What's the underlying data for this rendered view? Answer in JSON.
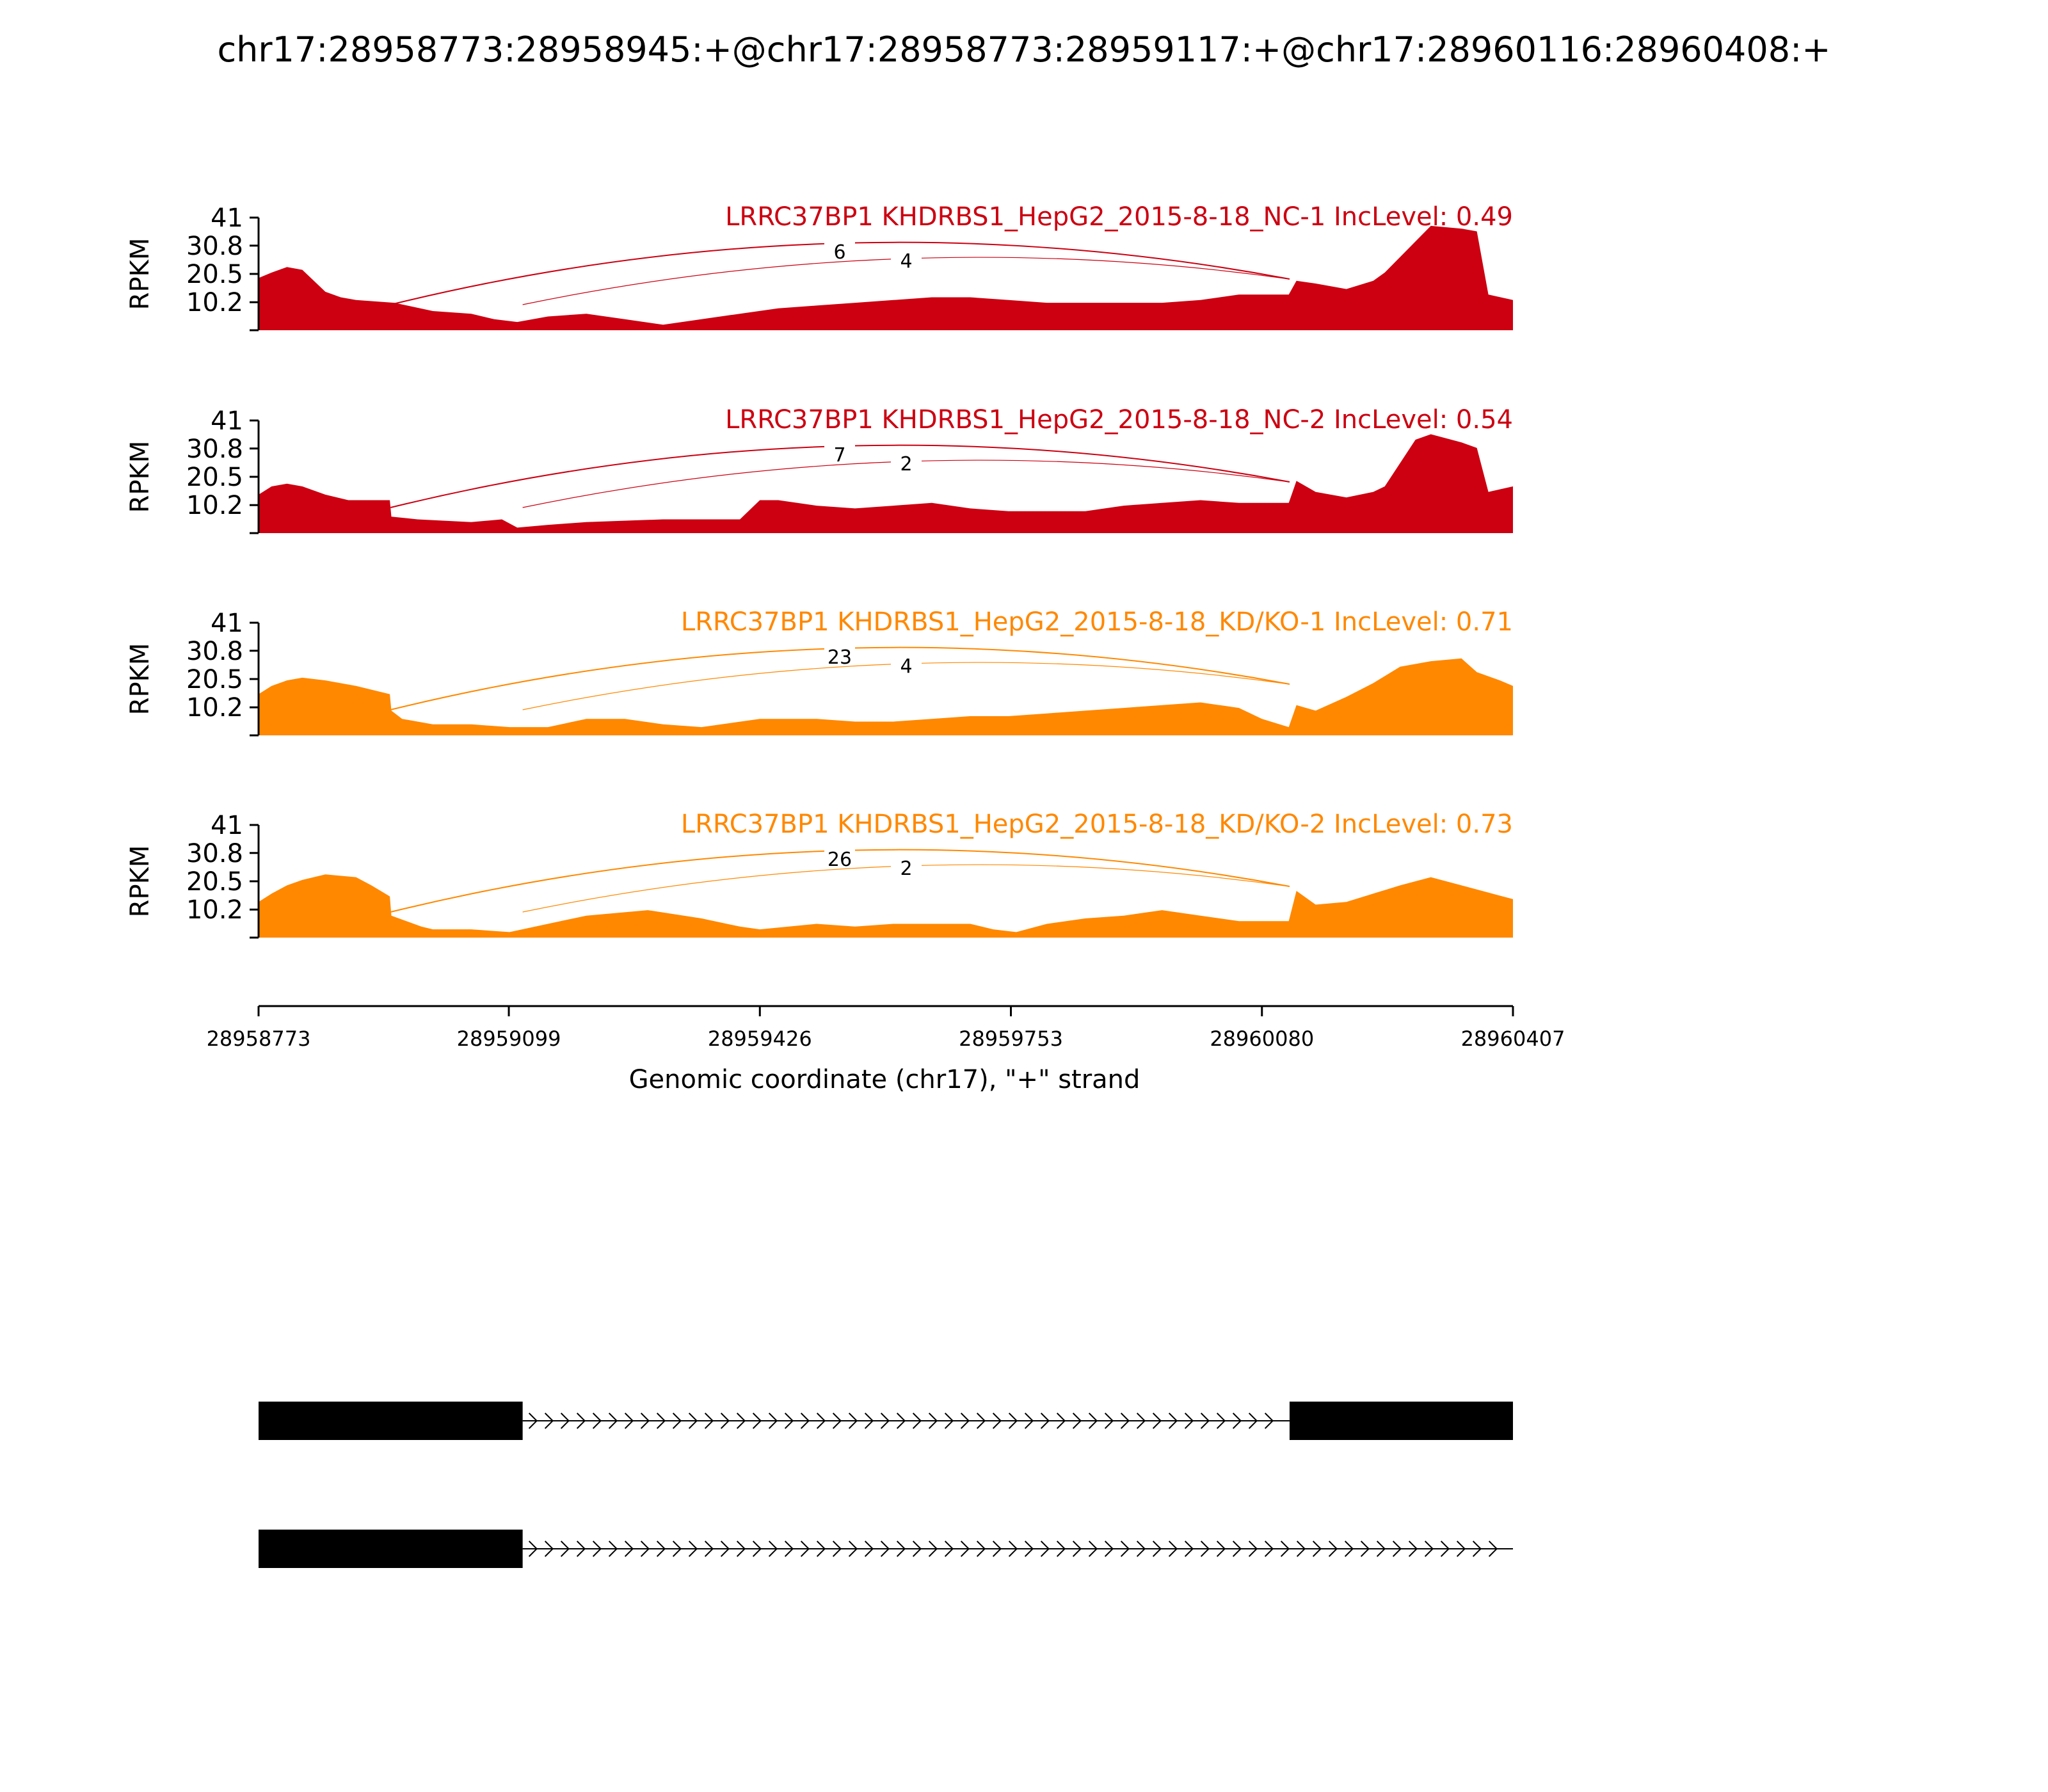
{
  "chart_data": {
    "type": "area",
    "title": "chr17:28958773:28958945:+@chr17:28958773:28959117:+@chr17:28960116:28960408:+",
    "xlabel": "Genomic coordinate (chr17), \"+\" strand",
    "ylabel": "RPKM",
    "xlim": [
      28958773,
      28960407
    ],
    "x_ticks": [
      "28958773",
      "28959099",
      "28959426",
      "28959753",
      "28960080",
      "28960407"
    ],
    "ylim": [
      0,
      41
    ],
    "y_ticks": [
      "10.2",
      "20.5",
      "30.8",
      "41"
    ],
    "grid": false,
    "tracks": [
      {
        "label": "LRRC37BP1 KHDRBS1_HepG2_2015-8-18_NC-1 IncLevel: 0.49",
        "color": "#cc0011",
        "x": [
          28958773,
          28958790,
          28958810,
          28958830,
          28958860,
          28958880,
          28958900,
          28958950,
          28959000,
          28959050,
          28959080,
          28959110,
          28959150,
          28959200,
          28959250,
          28959300,
          28959350,
          28959400,
          28959450,
          28959500,
          28959550,
          28959600,
          28959650,
          28959700,
          28959750,
          28959800,
          28959850,
          28959900,
          28959950,
          28960000,
          28960050,
          28960115,
          28960125,
          28960150,
          28960190,
          28960225,
          28960240,
          28960300,
          28960340,
          28960360,
          28960375,
          28960407
        ],
        "y": [
          19,
          21,
          23,
          22,
          14,
          12,
          11,
          10,
          7,
          6,
          4,
          3,
          5,
          6,
          4,
          2,
          4,
          6,
          8,
          9,
          10,
          11,
          12,
          12,
          11,
          10,
          10,
          10,
          10,
          11,
          13,
          13,
          18,
          17,
          15,
          18,
          21,
          38,
          37,
          36,
          13,
          11
        ],
        "junctions": [
          {
            "from": 28958945,
            "to": 28960116,
            "count": "6"
          },
          {
            "from": 28959117,
            "to": 28960116,
            "count": "4"
          }
        ]
      },
      {
        "label": "LRRC37BP1 KHDRBS1_HepG2_2015-8-18_NC-2 IncLevel: 0.54",
        "color": "#cc0011",
        "x": [
          28958773,
          28958790,
          28958810,
          28958830,
          28958860,
          28958890,
          28958944,
          28958946,
          28958980,
          28959050,
          28959090,
          28959110,
          28959150,
          28959200,
          28959300,
          28959400,
          28959426,
          28959450,
          28959500,
          28959550,
          28959600,
          28959650,
          28959700,
          28959750,
          28959800,
          28959850,
          28959900,
          28959950,
          28960000,
          28960050,
          28960115,
          28960125,
          28960150,
          28960190,
          28960225,
          28960240,
          28960280,
          28960300,
          28960340,
          28960360,
          28960375,
          28960407
        ],
        "y": [
          14,
          17,
          18,
          17,
          14,
          12,
          12,
          6,
          5,
          4,
          5,
          2,
          3,
          4,
          5,
          5,
          12,
          12,
          10,
          9,
          10,
          11,
          9,
          8,
          8,
          8,
          10,
          11,
          12,
          11,
          11,
          19,
          15,
          13,
          15,
          17,
          34,
          36,
          33,
          31,
          15,
          17
        ],
        "junctions": [
          {
            "from": 28958945,
            "to": 28960116,
            "count": "7"
          },
          {
            "from": 28959117,
            "to": 28960116,
            "count": "2"
          }
        ]
      },
      {
        "label": "LRRC37BP1 KHDRBS1_HepG2_2015-8-18_KD/KO-1 IncLevel: 0.71",
        "color": "#ff8800",
        "x": [
          28958773,
          28958790,
          28958810,
          28958830,
          28958860,
          28958900,
          28958944,
          28958946,
          28958960,
          28959000,
          28959050,
          28959100,
          28959150,
          28959200,
          28959250,
          28959300,
          28959350,
          28959426,
          28959500,
          28959550,
          28959600,
          28959650,
          28959700,
          28959750,
          28959800,
          28959850,
          28959900,
          28959950,
          28960000,
          28960050,
          28960080,
          28960115,
          28960125,
          28960150,
          28960190,
          28960225,
          28960260,
          28960300,
          28960340,
          28960360,
          28960390,
          28960407
        ],
        "y": [
          15,
          18,
          20,
          21,
          20,
          18,
          15,
          9,
          6,
          4,
          4,
          3,
          3,
          6,
          6,
          4,
          3,
          6,
          6,
          5,
          5,
          6,
          7,
          7,
          8,
          9,
          10,
          11,
          12,
          10,
          6,
          3,
          11,
          9,
          14,
          19,
          25,
          27,
          28,
          23,
          20,
          18
        ],
        "junctions": [
          {
            "from": 28958945,
            "to": 28960116,
            "count": "23"
          },
          {
            "from": 28959117,
            "to": 28960116,
            "count": "4"
          }
        ]
      },
      {
        "label": "LRRC37BP1 KHDRBS1_HepG2_2015-8-18_KD/KO-2 IncLevel: 0.73",
        "color": "#ff8800",
        "x": [
          28958773,
          28958790,
          28958810,
          28958830,
          28958860,
          28958900,
          28958920,
          28958944,
          28958946,
          28958985,
          28959000,
          28959050,
          28959100,
          28959150,
          28959200,
          28959280,
          28959350,
          28959400,
          28959426,
          28959500,
          28959550,
          28959600,
          28959650,
          28959700,
          28959730,
          28959760,
          28959800,
          28959850,
          28959900,
          28959950,
          28960000,
          28960050,
          28960115,
          28960125,
          28960150,
          28960190,
          28960225,
          28960260,
          28960300,
          28960340,
          28960380,
          28960407
        ],
        "y": [
          13,
          16,
          19,
          21,
          23,
          22,
          19,
          15,
          8,
          4,
          3,
          3,
          2,
          5,
          8,
          10,
          7,
          4,
          3,
          5,
          4,
          5,
          5,
          5,
          3,
          2,
          5,
          7,
          8,
          10,
          8,
          6,
          6,
          17,
          12,
          13,
          16,
          19,
          22,
          19,
          16,
          14
        ],
        "junctions": [
          {
            "from": 28958945,
            "to": 28960116,
            "count": "26"
          },
          {
            "from": 28959117,
            "to": 28960116,
            "count": "2"
          }
        ]
      }
    ],
    "gene_models": [
      {
        "exons": [
          [
            28958773,
            28959117
          ],
          [
            28960116,
            28960407
          ]
        ],
        "intron_end": 28960116
      },
      {
        "exons": [
          [
            28958773,
            28959117
          ]
        ],
        "intron_end": 28960407
      }
    ]
  }
}
